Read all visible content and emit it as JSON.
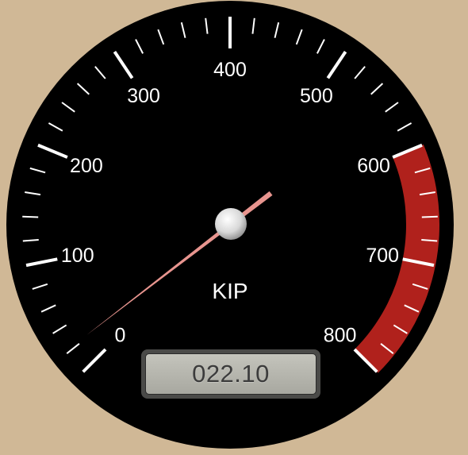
{
  "gauge": {
    "min": 0,
    "max": 800,
    "labels": [
      "0",
      "100",
      "200",
      "300",
      "400",
      "500",
      "600",
      "700",
      "800"
    ],
    "unit": "KIP",
    "value": 22.1,
    "display": "022.10",
    "danger_from": 600,
    "danger_to": 800
  },
  "colors": {
    "background": "#d0b896",
    "dial": "#000000",
    "ticks": "#ffffff",
    "danger_zone": "#b0211c",
    "needle": "#e8958f",
    "lcd_face": "#b4b4ac"
  }
}
